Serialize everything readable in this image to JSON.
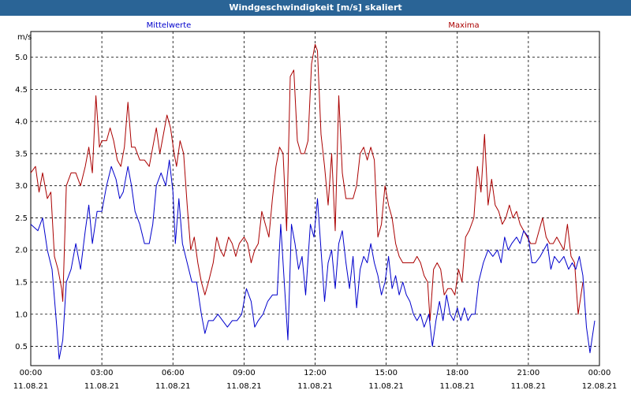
{
  "window": {
    "title": "Windgeschwindigkeit [m/s] skaliert"
  },
  "chart_data": {
    "type": "line",
    "title": "Windgeschwindigkeit [m/s] skaliert",
    "ylabel": "m/s",
    "xlabel": "",
    "ylim": [
      0.2,
      5.4
    ],
    "xlim_hours": [
      0,
      24
    ],
    "grid": true,
    "yticks": [
      "0.5",
      "1.0",
      "1.5",
      "2.0",
      "2.5",
      "3.0",
      "3.5",
      "4.0",
      "4.5",
      "5.0"
    ],
    "xticks": [
      {
        "time": "00:00",
        "date": "11.08.21"
      },
      {
        "time": "03:00",
        "date": "11.08.21"
      },
      {
        "time": "06:00",
        "date": "11.08.21"
      },
      {
        "time": "09:00",
        "date": "11.08.21"
      },
      {
        "time": "12:00",
        "date": "11.08.21"
      },
      {
        "time": "15:00",
        "date": "11.08.21"
      },
      {
        "time": "18:00",
        "date": "11.08.21"
      },
      {
        "time": "21:00",
        "date": "11.08.21"
      },
      {
        "time": "00:00",
        "date": "12.08.21"
      }
    ],
    "series": [
      {
        "name": "Mittelwerte",
        "color": "#0000cc",
        "points": [
          [
            0.0,
            2.4
          ],
          [
            0.3,
            2.3
          ],
          [
            0.5,
            2.5
          ],
          [
            0.7,
            2.0
          ],
          [
            0.9,
            1.7
          ],
          [
            1.1,
            0.8
          ],
          [
            1.2,
            0.3
          ],
          [
            1.35,
            0.6
          ],
          [
            1.5,
            1.5
          ],
          [
            1.7,
            1.7
          ],
          [
            1.9,
            2.1
          ],
          [
            2.1,
            1.7
          ],
          [
            2.3,
            2.3
          ],
          [
            2.45,
            2.7
          ],
          [
            2.6,
            2.1
          ],
          [
            2.8,
            2.6
          ],
          [
            3.0,
            2.6
          ],
          [
            3.2,
            3.0
          ],
          [
            3.4,
            3.3
          ],
          [
            3.6,
            3.1
          ],
          [
            3.75,
            2.8
          ],
          [
            3.9,
            2.9
          ],
          [
            4.1,
            3.3
          ],
          [
            4.25,
            3.0
          ],
          [
            4.4,
            2.6
          ],
          [
            4.6,
            2.4
          ],
          [
            4.8,
            2.1
          ],
          [
            5.0,
            2.1
          ],
          [
            5.15,
            2.4
          ],
          [
            5.3,
            3.0
          ],
          [
            5.5,
            3.2
          ],
          [
            5.7,
            3.0
          ],
          [
            5.85,
            3.4
          ],
          [
            6.0,
            2.9
          ],
          [
            6.1,
            2.1
          ],
          [
            6.25,
            2.8
          ],
          [
            6.4,
            2.1
          ],
          [
            6.6,
            1.8
          ],
          [
            6.8,
            1.5
          ],
          [
            7.0,
            1.5
          ],
          [
            7.2,
            1.0
          ],
          [
            7.35,
            0.7
          ],
          [
            7.5,
            0.9
          ],
          [
            7.7,
            0.9
          ],
          [
            7.9,
            1.0
          ],
          [
            8.1,
            0.9
          ],
          [
            8.3,
            0.8
          ],
          [
            8.5,
            0.9
          ],
          [
            8.7,
            0.9
          ],
          [
            8.9,
            1.0
          ],
          [
            9.1,
            1.4
          ],
          [
            9.3,
            1.2
          ],
          [
            9.45,
            0.8
          ],
          [
            9.6,
            0.9
          ],
          [
            9.8,
            1.0
          ],
          [
            10.0,
            1.2
          ],
          [
            10.2,
            1.3
          ],
          [
            10.4,
            1.3
          ],
          [
            10.55,
            2.4
          ],
          [
            10.7,
            1.5
          ],
          [
            10.85,
            0.6
          ],
          [
            11.0,
            2.4
          ],
          [
            11.15,
            2.1
          ],
          [
            11.3,
            1.7
          ],
          [
            11.45,
            1.9
          ],
          [
            11.6,
            1.3
          ],
          [
            11.8,
            2.4
          ],
          [
            11.95,
            2.2
          ],
          [
            12.1,
            2.8
          ],
          [
            12.25,
            2.0
          ],
          [
            12.4,
            1.2
          ],
          [
            12.55,
            1.8
          ],
          [
            12.7,
            2.0
          ],
          [
            12.85,
            1.4
          ],
          [
            13.0,
            2.1
          ],
          [
            13.15,
            2.3
          ],
          [
            13.3,
            1.8
          ],
          [
            13.45,
            1.4
          ],
          [
            13.6,
            1.9
          ],
          [
            13.75,
            1.1
          ],
          [
            13.9,
            1.7
          ],
          [
            14.05,
            1.9
          ],
          [
            14.2,
            1.8
          ],
          [
            14.35,
            2.1
          ],
          [
            14.5,
            1.8
          ],
          [
            14.65,
            1.6
          ],
          [
            14.8,
            1.3
          ],
          [
            14.95,
            1.5
          ],
          [
            15.1,
            1.9
          ],
          [
            15.25,
            1.4
          ],
          [
            15.4,
            1.6
          ],
          [
            15.55,
            1.3
          ],
          [
            15.7,
            1.5
          ],
          [
            15.85,
            1.3
          ],
          [
            16.0,
            1.2
          ],
          [
            16.15,
            1.0
          ],
          [
            16.3,
            0.9
          ],
          [
            16.45,
            1.0
          ],
          [
            16.6,
            0.8
          ],
          [
            16.8,
            1.0
          ],
          [
            16.95,
            0.5
          ],
          [
            17.1,
            0.9
          ],
          [
            17.25,
            1.2
          ],
          [
            17.4,
            0.9
          ],
          [
            17.55,
            1.3
          ],
          [
            17.7,
            1.0
          ],
          [
            17.85,
            0.9
          ],
          [
            18.0,
            1.1
          ],
          [
            18.15,
            0.9
          ],
          [
            18.3,
            1.1
          ],
          [
            18.45,
            0.9
          ],
          [
            18.6,
            1.0
          ],
          [
            18.75,
            1.0
          ],
          [
            18.9,
            1.5
          ],
          [
            19.1,
            1.8
          ],
          [
            19.3,
            2.0
          ],
          [
            19.5,
            1.9
          ],
          [
            19.7,
            2.0
          ],
          [
            19.85,
            1.8
          ],
          [
            20.0,
            2.2
          ],
          [
            20.15,
            2.0
          ],
          [
            20.3,
            2.1
          ],
          [
            20.5,
            2.2
          ],
          [
            20.65,
            2.1
          ],
          [
            20.8,
            2.3
          ],
          [
            21.0,
            2.2
          ],
          [
            21.15,
            1.8
          ],
          [
            21.3,
            1.8
          ],
          [
            21.5,
            1.9
          ],
          [
            21.65,
            2.0
          ],
          [
            21.8,
            2.1
          ],
          [
            21.95,
            1.7
          ],
          [
            22.1,
            1.9
          ],
          [
            22.3,
            1.8
          ],
          [
            22.5,
            1.9
          ],
          [
            22.7,
            1.7
          ],
          [
            22.85,
            1.8
          ],
          [
            23.0,
            1.7
          ],
          [
            23.15,
            1.9
          ],
          [
            23.3,
            1.6
          ],
          [
            23.45,
            0.8
          ],
          [
            23.6,
            0.4
          ],
          [
            23.8,
            0.9
          ]
        ]
      },
      {
        "name": "Maxima",
        "color": "#aa0000",
        "points": [
          [
            0.0,
            3.2
          ],
          [
            0.2,
            3.3
          ],
          [
            0.35,
            2.9
          ],
          [
            0.5,
            3.2
          ],
          [
            0.7,
            2.8
          ],
          [
            0.85,
            2.9
          ],
          [
            1.0,
            1.9
          ],
          [
            1.15,
            1.7
          ],
          [
            1.3,
            1.4
          ],
          [
            1.35,
            1.2
          ],
          [
            1.5,
            3.0
          ],
          [
            1.7,
            3.2
          ],
          [
            1.9,
            3.2
          ],
          [
            2.1,
            3.0
          ],
          [
            2.3,
            3.3
          ],
          [
            2.45,
            3.6
          ],
          [
            2.6,
            3.2
          ],
          [
            2.75,
            4.4
          ],
          [
            2.9,
            3.6
          ],
          [
            3.0,
            3.7
          ],
          [
            3.2,
            3.7
          ],
          [
            3.35,
            3.9
          ],
          [
            3.5,
            3.7
          ],
          [
            3.65,
            3.4
          ],
          [
            3.8,
            3.3
          ],
          [
            3.95,
            3.6
          ],
          [
            4.1,
            4.3
          ],
          [
            4.25,
            3.6
          ],
          [
            4.4,
            3.6
          ],
          [
            4.6,
            3.4
          ],
          [
            4.8,
            3.4
          ],
          [
            5.0,
            3.3
          ],
          [
            5.15,
            3.6
          ],
          [
            5.3,
            3.9
          ],
          [
            5.45,
            3.5
          ],
          [
            5.6,
            3.8
          ],
          [
            5.75,
            4.1
          ],
          [
            5.9,
            3.9
          ],
          [
            6.05,
            3.5
          ],
          [
            6.15,
            3.3
          ],
          [
            6.3,
            3.7
          ],
          [
            6.45,
            3.5
          ],
          [
            6.6,
            2.7
          ],
          [
            6.75,
            2.0
          ],
          [
            6.9,
            2.2
          ],
          [
            7.05,
            1.8
          ],
          [
            7.2,
            1.5
          ],
          [
            7.35,
            1.3
          ],
          [
            7.5,
            1.5
          ],
          [
            7.7,
            1.8
          ],
          [
            7.85,
            2.2
          ],
          [
            8.0,
            2.0
          ],
          [
            8.15,
            1.9
          ],
          [
            8.35,
            2.2
          ],
          [
            8.5,
            2.1
          ],
          [
            8.65,
            1.9
          ],
          [
            8.8,
            2.1
          ],
          [
            9.0,
            2.2
          ],
          [
            9.15,
            2.1
          ],
          [
            9.3,
            1.8
          ],
          [
            9.45,
            2.0
          ],
          [
            9.6,
            2.1
          ],
          [
            9.75,
            2.6
          ],
          [
            9.9,
            2.4
          ],
          [
            10.05,
            2.2
          ],
          [
            10.2,
            2.8
          ],
          [
            10.35,
            3.3
          ],
          [
            10.5,
            3.6
          ],
          [
            10.65,
            3.5
          ],
          [
            10.8,
            2.3
          ],
          [
            10.95,
            4.7
          ],
          [
            11.1,
            4.8
          ],
          [
            11.25,
            3.7
          ],
          [
            11.4,
            3.5
          ],
          [
            11.55,
            3.5
          ],
          [
            11.7,
            3.7
          ],
          [
            11.85,
            4.9
          ],
          [
            12.0,
            5.2
          ],
          [
            12.1,
            5.1
          ],
          [
            12.25,
            3.8
          ],
          [
            12.4,
            3.3
          ],
          [
            12.55,
            2.7
          ],
          [
            12.7,
            3.5
          ],
          [
            12.85,
            2.3
          ],
          [
            13.0,
            4.4
          ],
          [
            13.15,
            3.2
          ],
          [
            13.3,
            2.8
          ],
          [
            13.45,
            2.8
          ],
          [
            13.6,
            2.8
          ],
          [
            13.75,
            3.0
          ],
          [
            13.9,
            3.5
          ],
          [
            14.05,
            3.6
          ],
          [
            14.2,
            3.4
          ],
          [
            14.35,
            3.6
          ],
          [
            14.5,
            3.4
          ],
          [
            14.65,
            2.2
          ],
          [
            14.8,
            2.4
          ],
          [
            14.95,
            3.0
          ],
          [
            15.1,
            2.7
          ],
          [
            15.25,
            2.5
          ],
          [
            15.4,
            2.1
          ],
          [
            15.55,
            1.9
          ],
          [
            15.7,
            1.8
          ],
          [
            15.85,
            1.8
          ],
          [
            16.0,
            1.8
          ],
          [
            16.15,
            1.8
          ],
          [
            16.3,
            1.9
          ],
          [
            16.45,
            1.8
          ],
          [
            16.6,
            1.6
          ],
          [
            16.75,
            1.5
          ],
          [
            16.85,
            0.9
          ],
          [
            17.0,
            1.7
          ],
          [
            17.15,
            1.8
          ],
          [
            17.3,
            1.7
          ],
          [
            17.45,
            1.3
          ],
          [
            17.6,
            1.4
          ],
          [
            17.75,
            1.4
          ],
          [
            17.9,
            1.3
          ],
          [
            18.05,
            1.7
          ],
          [
            18.2,
            1.5
          ],
          [
            18.35,
            2.2
          ],
          [
            18.5,
            2.3
          ],
          [
            18.7,
            2.5
          ],
          [
            18.85,
            3.3
          ],
          [
            19.0,
            2.9
          ],
          [
            19.15,
            3.8
          ],
          [
            19.3,
            2.7
          ],
          [
            19.45,
            3.1
          ],
          [
            19.6,
            2.7
          ],
          [
            19.75,
            2.6
          ],
          [
            19.9,
            2.4
          ],
          [
            20.05,
            2.5
          ],
          [
            20.2,
            2.7
          ],
          [
            20.35,
            2.5
          ],
          [
            20.5,
            2.6
          ],
          [
            20.65,
            2.4
          ],
          [
            20.8,
            2.3
          ],
          [
            20.95,
            2.2
          ],
          [
            21.1,
            2.1
          ],
          [
            21.3,
            2.1
          ],
          [
            21.45,
            2.3
          ],
          [
            21.6,
            2.5
          ],
          [
            21.75,
            2.2
          ],
          [
            21.9,
            2.1
          ],
          [
            22.05,
            2.1
          ],
          [
            22.2,
            2.2
          ],
          [
            22.35,
            2.1
          ],
          [
            22.5,
            2.0
          ],
          [
            22.65,
            2.4
          ],
          [
            22.8,
            1.9
          ],
          [
            22.95,
            1.8
          ],
          [
            23.1,
            1.0
          ],
          [
            23.3,
            1.5
          ]
        ]
      }
    ]
  }
}
